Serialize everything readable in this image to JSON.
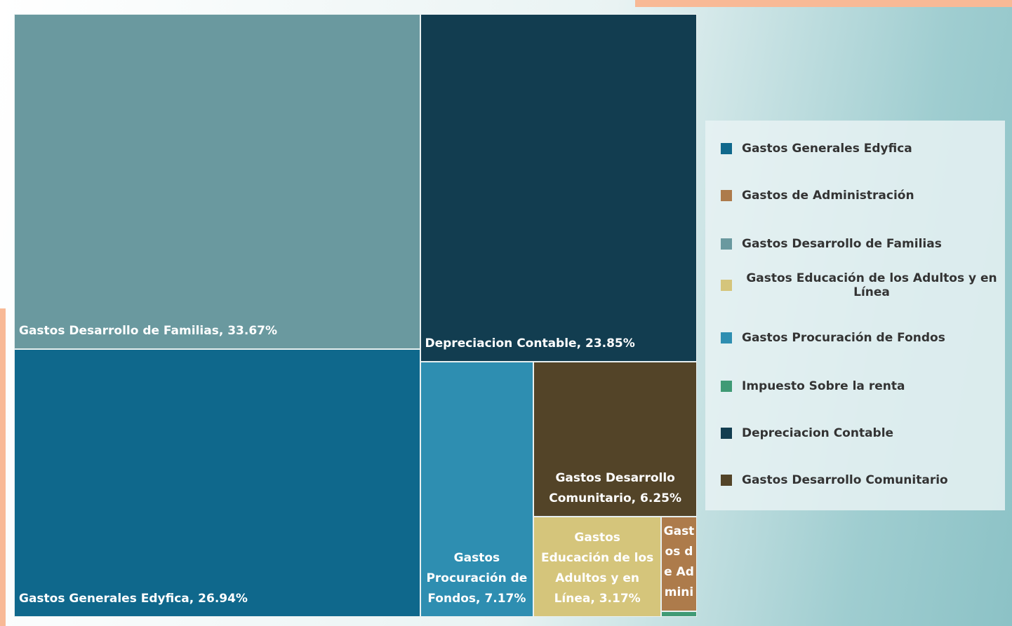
{
  "chart_data": {
    "type": "treemap",
    "categories": [
      "Gastos Generales Edyfica",
      "Gastos de Administración",
      "Gastos Desarrollo de Familias",
      "Gastos Educación de los Adultos y en Línea",
      "Gastos Procuración de Fondos",
      "Impuesto Sobre la renta",
      "Depreciacion Contable",
      "Gastos Desarrollo Comunitario"
    ],
    "values": [
      26.94,
      0.84,
      33.67,
      3.17,
      7.17,
      0.05,
      23.85,
      6.25
    ],
    "value_labels": [
      "26.94%",
      null,
      "33.67%",
      "3.17%",
      "7.17%",
      null,
      "23.85%",
      "6.25%"
    ],
    "colors": [
      "#0f688c",
      "#ad7b4b",
      "#6a999f",
      "#d5c57b",
      "#2e8eb1",
      "#3f9a75",
      "#123d50",
      "#534428"
    ],
    "legend": "right"
  }
}
